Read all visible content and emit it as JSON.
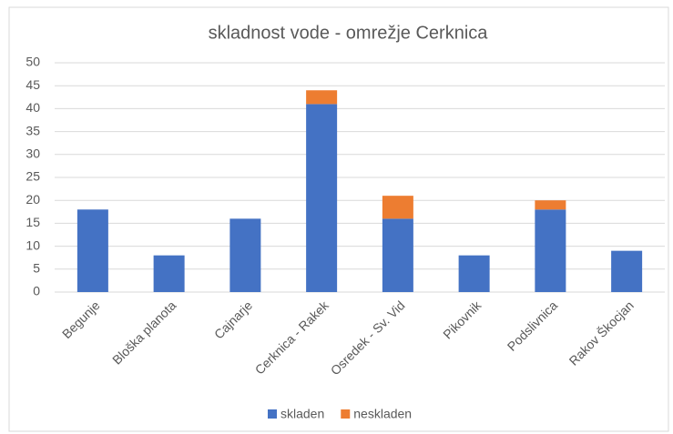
{
  "chart_data": {
    "type": "stacked_bar",
    "title": "skladnost vode - omrežje Cerknica",
    "categories": [
      "Begunje",
      "Bloška planota",
      "Cajnarje",
      "Cerknica - Rakek",
      "Osredek - Sv. Vid",
      "Pikovnik",
      "Podslivnica",
      "Rakov Škocjan"
    ],
    "series": [
      {
        "name": "skladen",
        "color": "#4472c4",
        "values": [
          18,
          8,
          16,
          41,
          16,
          8,
          18,
          9
        ]
      },
      {
        "name": "neskladen",
        "color": "#ed7d31",
        "values": [
          0,
          0,
          0,
          3,
          5,
          0,
          2,
          0
        ]
      }
    ],
    "ylim": [
      0,
      50
    ],
    "yticks": [
      0,
      5,
      10,
      15,
      20,
      25,
      30,
      35,
      40,
      45,
      50
    ],
    "grid": true,
    "legend": "bottom"
  }
}
